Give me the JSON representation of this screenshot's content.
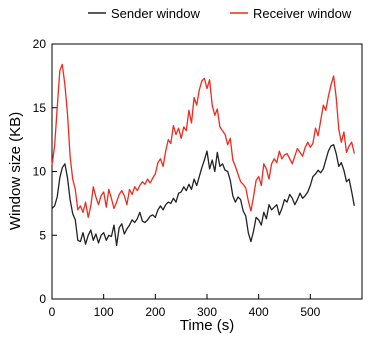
{
  "chart_data": {
    "type": "line",
    "title": "",
    "xlabel": "Time (s)",
    "ylabel": "Window size (KB)",
    "xlim": [
      0,
      600
    ],
    "ylim": [
      0,
      20
    ],
    "xticks": [
      0,
      100,
      200,
      300,
      400,
      500
    ],
    "yticks": [
      0,
      5,
      10,
      15,
      20
    ],
    "grid": false,
    "legend_position": "top-right",
    "series": [
      {
        "name": "Sender window",
        "color": "#222222",
        "x": [
          0,
          5,
          10,
          15,
          20,
          25,
          30,
          35,
          40,
          45,
          50,
          55,
          60,
          65,
          70,
          75,
          80,
          85,
          90,
          95,
          100,
          105,
          110,
          115,
          120,
          125,
          130,
          135,
          140,
          145,
          150,
          155,
          160,
          165,
          170,
          175,
          180,
          185,
          190,
          195,
          200,
          205,
          210,
          215,
          220,
          225,
          230,
          235,
          240,
          245,
          250,
          255,
          260,
          265,
          270,
          275,
          280,
          285,
          290,
          295,
          300,
          305,
          310,
          315,
          320,
          325,
          330,
          335,
          340,
          345,
          350,
          355,
          360,
          365,
          370,
          375,
          380,
          385,
          390,
          395,
          400,
          405,
          410,
          415,
          420,
          425,
          430,
          435,
          440,
          445,
          450,
          455,
          460,
          465,
          470,
          475,
          480,
          485,
          490,
          495,
          500,
          505,
          510,
          515,
          520,
          525,
          530,
          535,
          540,
          545,
          550,
          555,
          560,
          565,
          570,
          575,
          580,
          585
        ],
        "values": [
          7.1,
          7.3,
          8.0,
          9.5,
          10.3,
          10.6,
          9.5,
          7.8,
          6.7,
          6.2,
          4.6,
          4.5,
          5.2,
          4.3,
          5.0,
          5.4,
          4.6,
          5.1,
          4.4,
          5.0,
          5.2,
          4.6,
          5.0,
          4.9,
          5.8,
          4.2,
          5.6,
          5.9,
          5.1,
          5.5,
          5.8,
          6.2,
          6.0,
          6.3,
          6.8,
          6.1,
          6.0,
          6.2,
          6.5,
          6.6,
          6.4,
          7.0,
          7.3,
          7.0,
          7.4,
          7.6,
          7.5,
          7.9,
          7.6,
          8.3,
          8.4,
          8.8,
          8.5,
          9.0,
          8.6,
          9.4,
          8.9,
          9.6,
          10.3,
          10.9,
          11.6,
          10.2,
          10.9,
          10.0,
          11.5,
          10.4,
          10.6,
          10.1,
          10.0,
          9.3,
          8.1,
          7.6,
          8.0,
          7.8,
          6.9,
          6.5,
          5.2,
          4.5,
          5.3,
          6.4,
          6.2,
          5.8,
          6.8,
          6.3,
          7.4,
          7.0,
          7.2,
          7.4,
          6.6,
          7.1,
          7.8,
          7.6,
          8.2,
          7.9,
          7.4,
          7.8,
          8.3,
          7.9,
          8.1,
          8.4,
          8.9,
          9.6,
          9.8,
          10.1,
          9.9,
          10.2,
          10.9,
          11.6,
          12.0,
          12.1,
          11.4,
          10.4,
          10.7,
          10.1,
          9.2,
          9.4,
          8.4,
          7.3
        ]
      },
      {
        "name": "Receiver window",
        "color": "#ee2b1f",
        "x": [
          0,
          5,
          10,
          15,
          20,
          25,
          30,
          35,
          40,
          45,
          50,
          55,
          60,
          65,
          70,
          75,
          80,
          85,
          90,
          95,
          100,
          105,
          110,
          115,
          120,
          125,
          130,
          135,
          140,
          145,
          150,
          155,
          160,
          165,
          170,
          175,
          180,
          185,
          190,
          195,
          200,
          205,
          210,
          215,
          220,
          225,
          230,
          235,
          240,
          245,
          250,
          255,
          260,
          265,
          270,
          275,
          280,
          285,
          290,
          295,
          300,
          305,
          310,
          315,
          320,
          325,
          330,
          335,
          340,
          345,
          350,
          355,
          360,
          365,
          370,
          375,
          380,
          385,
          390,
          395,
          400,
          405,
          410,
          415,
          420,
          425,
          430,
          435,
          440,
          445,
          450,
          455,
          460,
          465,
          470,
          475,
          480,
          485,
          490,
          495,
          500,
          505,
          510,
          515,
          520,
          525,
          530,
          535,
          540,
          545,
          550,
          555,
          560,
          565,
          570,
          575,
          580,
          585
        ],
        "values": [
          10.5,
          12.0,
          15.0,
          17.9,
          18.4,
          16.8,
          14.5,
          11.2,
          9.4,
          8.6,
          7.0,
          7.3,
          6.8,
          7.6,
          6.4,
          7.3,
          8.8,
          8.0,
          7.4,
          8.1,
          8.4,
          7.2,
          8.6,
          7.9,
          7.1,
          7.6,
          8.2,
          8.5,
          8.1,
          7.4,
          8.6,
          8.2,
          8.8,
          8.5,
          8.9,
          9.2,
          9.0,
          9.4,
          9.1,
          9.5,
          9.8,
          10.7,
          11.0,
          10.4,
          11.6,
          12.5,
          12.2,
          13.6,
          12.9,
          13.4,
          12.6,
          13.5,
          13.2,
          14.8,
          13.8,
          15.8,
          15.2,
          16.4,
          17.1,
          17.3,
          16.5,
          17.2,
          15.2,
          14.4,
          14.9,
          13.5,
          13.2,
          12.9,
          12.1,
          12.6,
          10.9,
          10.4,
          9.8,
          9.2,
          9.0,
          8.7,
          7.7,
          6.9,
          8.0,
          9.3,
          9.6,
          8.9,
          10.6,
          10.2,
          9.4,
          10.6,
          11.0,
          10.7,
          11.6,
          11.0,
          11.3,
          11.4,
          11.0,
          10.6,
          11.2,
          11.8,
          11.5,
          11.2,
          11.9,
          12.3,
          11.9,
          12.2,
          13.4,
          12.8,
          14.0,
          15.2,
          14.8,
          15.9,
          16.8,
          17.5,
          15.8,
          13.3,
          12.3,
          13.1,
          11.5,
          12.0,
          12.3,
          11.4
        ]
      }
    ]
  }
}
